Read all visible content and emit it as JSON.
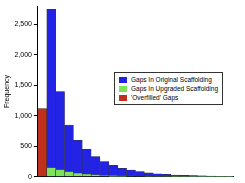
{
  "chart_data": {
    "type": "histogram",
    "y_label": "Frequency",
    "bins": [
      -1,
      0,
      1,
      2,
      3,
      4,
      5,
      6,
      7,
      8,
      9,
      10,
      11,
      12,
      13,
      14,
      15,
      16,
      17,
      18,
      19,
      20,
      21
    ],
    "series": [
      {
        "name": "Gaps In Original Scaffolding",
        "color": "#2323e6",
        "values": [
          0,
          2750,
          1400,
          850,
          600,
          450,
          330,
          250,
          190,
          140,
          110,
          85,
          65,
          50,
          40,
          30,
          25,
          20,
          15,
          10,
          8,
          5
        ]
      },
      {
        "name": "Gaps In Upgraded Scaffolding",
        "color": "#7de35a",
        "values": [
          0,
          150,
          120,
          85,
          60,
          45,
          35,
          25,
          20,
          15,
          12,
          10,
          8,
          6,
          5,
          4,
          3,
          2,
          2,
          1,
          1,
          1
        ]
      },
      {
        "name": "'Overfilled' Gaps",
        "color": "#c1301c",
        "values": [
          1120,
          0,
          0,
          0,
          0,
          0,
          0,
          0,
          0,
          0,
          0,
          0,
          0,
          0,
          0,
          0,
          0,
          0,
          0,
          0,
          0,
          0
        ]
      }
    ],
    "xlim": [
      -1,
      21
    ],
    "xticks": [
      0,
      5,
      10,
      15,
      20
    ],
    "ylim": [
      0,
      2800
    ],
    "yticks": [
      0,
      500,
      1000,
      1500,
      2000,
      2500
    ],
    "grid": false,
    "legend": "right",
    "tick_labels": "y"
  }
}
